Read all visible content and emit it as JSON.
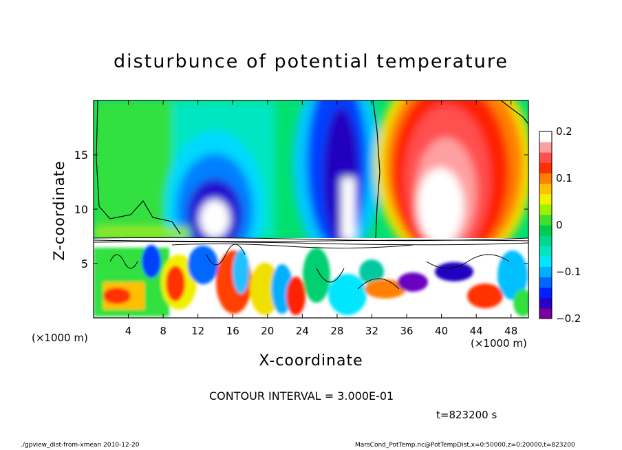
{
  "chart_data": {
    "type": "heatmap",
    "title": "disturbunce of potential temperature",
    "xlabel": "X-coordinate",
    "ylabel": "Z-coordinate",
    "x_unit_label_left": "(×1000 m)",
    "x_unit_label_right": "(×1000 m)",
    "xlim": [
      0,
      50
    ],
    "ylim": [
      0,
      20
    ],
    "x_ticks": [
      "4",
      "8",
      "12",
      "16",
      "20",
      "24",
      "28",
      "32",
      "36",
      "40",
      "44",
      "48"
    ],
    "x_tick_values": [
      4,
      8,
      12,
      16,
      20,
      24,
      28,
      32,
      36,
      40,
      44,
      48
    ],
    "y_ticks": [
      "5",
      "10",
      "15"
    ],
    "y_tick_values": [
      5,
      10,
      15
    ],
    "colorbar": {
      "range": [
        -0.2,
        0.2
      ],
      "tick_labels": [
        "0.2",
        "0.1",
        "0",
        "−0.1",
        "−0.2"
      ],
      "tick_values": [
        0.2,
        0.1,
        0,
        -0.1,
        -0.2
      ],
      "colors": [
        "#7a00a0",
        "#2a00c8",
        "#0020ff",
        "#0068ff",
        "#00b0ff",
        "#00e6ff",
        "#00e6c0",
        "#00d890",
        "#00cc50",
        "#40e030",
        "#a0f000",
        "#f0f000",
        "#ffc000",
        "#ff8000",
        "#ff3000",
        "#ff5050",
        "#ffa0a0",
        "#ffffff"
      ]
    },
    "contour_interval_text": "CONTOUR INTERVAL = 3.000E-01",
    "upper_layer_features": [
      {
        "x_center": 14,
        "value": -0.2,
        "top_z": 13
      },
      {
        "x_center": 29,
        "value": -0.2,
        "top_z": 19
      },
      {
        "x_center": 40,
        "value": 0.2,
        "top_z": 18
      }
    ],
    "lower_layer_top_z": 7.5,
    "grid": false
  },
  "annotations": {
    "time_label": "t=823200 s",
    "footer_left": "./gpview_dist-from-xmean  2010-12-20",
    "footer_right": "MarsCond_PotTemp.nc@PotTempDist,x=0:50000,z=0:20000,t=823200"
  }
}
